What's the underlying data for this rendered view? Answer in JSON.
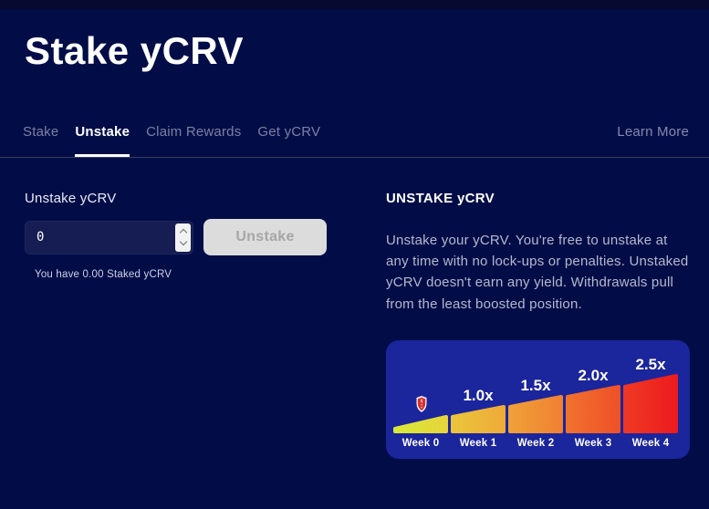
{
  "page": {
    "title": "Stake yCRV"
  },
  "tabs": {
    "items": [
      {
        "label": "Stake",
        "active": false
      },
      {
        "label": "Unstake",
        "active": true
      },
      {
        "label": "Claim Rewards",
        "active": false
      },
      {
        "label": "Get yCRV",
        "active": false
      }
    ],
    "learn_more_label": "Learn More"
  },
  "form": {
    "label": "Unstake yCRV",
    "amount_value": "0",
    "submit_label": "Unstake",
    "helper_text": "You have 0.00 Staked yCRV"
  },
  "info": {
    "heading": "UNSTAKE yCRV",
    "body": "Unstake your yCRV. You're free to unstake at any time with no lock-ups or penalties. Unstaked yCRV doesn't earn any yield. Withdrawals pull from the least boosted position."
  },
  "chart_data": {
    "type": "area",
    "categories": [
      "Week 0",
      "Week 1",
      "Week 2",
      "Week 3",
      "Week 4"
    ],
    "labels": [
      "",
      "1.0x",
      "1.5x",
      "2.0x",
      "2.5x"
    ],
    "values": [
      null,
      1.0,
      1.5,
      2.0,
      2.5
    ],
    "heights": [
      [
        5,
        18
      ],
      [
        18,
        29
      ],
      [
        29,
        40
      ],
      [
        40,
        51
      ],
      [
        51,
        63
      ]
    ],
    "colors": [
      [
        "#d9e838",
        "#e6d43b"
      ],
      [
        "#eac43b",
        "#efab39"
      ],
      [
        "#f0a038",
        "#f08133"
      ],
      [
        "#f0702e",
        "#ef5128"
      ],
      [
        "#ee3824",
        "#ed1b1e"
      ]
    ],
    "panel_bg": "#1b259c",
    "icon_on_first": "shield-icon",
    "legend": "none",
    "grid": false
  },
  "colors": {
    "background": "#020d48",
    "top_strip": "#070a2e",
    "divider": "#3a4060",
    "tab_inactive": "#7b81a0",
    "tab_active": "#ffffff",
    "body_text": "#b4b8cc",
    "input_bg": "#161d52",
    "button_bg": "#dcdcdc",
    "button_text": "#a6a6a6",
    "chart_panel_bg": "#1b259c"
  }
}
